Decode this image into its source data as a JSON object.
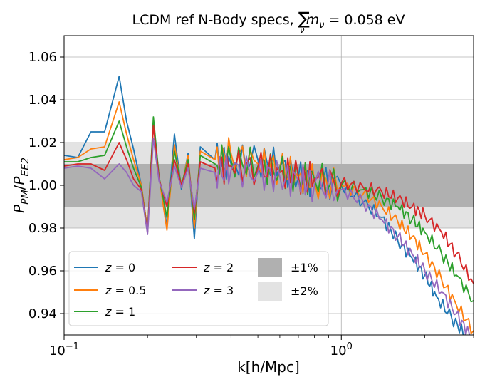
{
  "chart_data": {
    "type": "line",
    "title": "LCDM ref N-Body specs, ∑ν mν = 0.058 eV",
    "title_parts": {
      "prefix": "LCDM ref N-Body specs, ",
      "sum": "∑",
      "sub": "ν",
      "m": "m",
      "msub": "ν",
      "suffix": " = 0.058 eV"
    },
    "xlabel": "k[h/Mpc]",
    "ylabel": "P_PM/P_EE2",
    "ylabel_parts": {
      "p1": "P",
      "s1": "PM",
      "slash": "/",
      "p2": "P",
      "s2": "EE2"
    },
    "xscale": "log",
    "xlim": [
      0.1,
      3.0
    ],
    "ylim": [
      0.93,
      1.07
    ],
    "xticks": [
      {
        "value": 0.1,
        "base": "10",
        "exp": "−1"
      },
      {
        "value": 1.0,
        "base": "10",
        "exp": "0"
      }
    ],
    "yticks": [
      0.94,
      0.96,
      0.98,
      1.0,
      1.02,
      1.04,
      1.06
    ],
    "ytick_labels": [
      "0.94",
      "0.96",
      "0.98",
      "1.00",
      "1.02",
      "1.04",
      "1.06"
    ],
    "grid": true,
    "bands": [
      {
        "name": "±1%",
        "lower": 0.99,
        "upper": 1.01,
        "color": "#b0b0b0"
      },
      {
        "name": "±2%",
        "lower": 0.98,
        "upper": 1.02,
        "color": "#e3e3e3"
      }
    ],
    "legend": {
      "placement": "lower-left",
      "columns": 3
    },
    "series": [
      {
        "name": "z = 0",
        "label_var": "z",
        "label_val": "0",
        "color": "#1f77b4",
        "points": [
          [
            0.1,
            1.014
          ],
          [
            0.112,
            1.013
          ],
          [
            0.125,
            1.025
          ],
          [
            0.14,
            1.025
          ],
          [
            0.158,
            1.051
          ],
          [
            0.168,
            1.03
          ],
          [
            0.178,
            1.017
          ],
          [
            0.19,
            1.0
          ],
          [
            0.2,
            0.979
          ],
          [
            0.21,
            1.03
          ],
          [
            0.22,
            1.004
          ],
          [
            0.235,
            0.981
          ],
          [
            0.25,
            1.024
          ],
          [
            0.265,
            0.998
          ],
          [
            0.28,
            1.015
          ],
          [
            0.295,
            0.975
          ],
          [
            0.31,
            1.018
          ],
          [
            0.35,
            1.012
          ],
          [
            0.4,
            1.01
          ],
          [
            0.5,
            1.012
          ],
          [
            0.6,
            1.009
          ],
          [
            0.7,
            1.004
          ],
          [
            0.8,
            1.002
          ],
          [
            1.0,
            1.0
          ],
          [
            1.2,
            0.992
          ],
          [
            1.4,
            0.985
          ],
          [
            1.6,
            0.974
          ],
          [
            1.8,
            0.966
          ],
          [
            2.0,
            0.958
          ],
          [
            2.2,
            0.948
          ],
          [
            2.5,
            0.938
          ],
          [
            2.8,
            0.93
          ]
        ]
      },
      {
        "name": "z = 0.5",
        "label_var": "z",
        "label_val": "0.5",
        "color": "#ff7f0e",
        "points": [
          [
            0.1,
            1.012
          ],
          [
            0.112,
            1.013
          ],
          [
            0.125,
            1.017
          ],
          [
            0.14,
            1.018
          ],
          [
            0.158,
            1.039
          ],
          [
            0.168,
            1.024
          ],
          [
            0.178,
            1.012
          ],
          [
            0.19,
            1.0
          ],
          [
            0.2,
            0.979
          ],
          [
            0.21,
            1.029
          ],
          [
            0.22,
            1.004
          ],
          [
            0.235,
            0.979
          ],
          [
            0.25,
            1.019
          ],
          [
            0.265,
            0.999
          ],
          [
            0.28,
            1.014
          ],
          [
            0.295,
            0.98
          ],
          [
            0.31,
            1.016
          ],
          [
            0.35,
            1.012
          ],
          [
            0.4,
            1.015
          ],
          [
            0.5,
            1.01
          ],
          [
            0.6,
            1.008
          ],
          [
            0.7,
            1.004
          ],
          [
            0.8,
            1.002
          ],
          [
            1.0,
            1.0
          ],
          [
            1.2,
            0.996
          ],
          [
            1.4,
            0.99
          ],
          [
            1.6,
            0.983
          ],
          [
            1.8,
            0.976
          ],
          [
            2.0,
            0.968
          ],
          [
            2.3,
            0.956
          ],
          [
            2.6,
            0.944
          ],
          [
            3.0,
            0.932
          ]
        ]
      },
      {
        "name": "z = 1",
        "label_var": "z",
        "label_val": "1",
        "color": "#2ca02c",
        "points": [
          [
            0.1,
            1.011
          ],
          [
            0.112,
            1.011
          ],
          [
            0.125,
            1.013
          ],
          [
            0.14,
            1.014
          ],
          [
            0.158,
            1.03
          ],
          [
            0.168,
            1.018
          ],
          [
            0.178,
            1.008
          ],
          [
            0.19,
            0.999
          ],
          [
            0.2,
            0.978
          ],
          [
            0.21,
            1.032
          ],
          [
            0.22,
            1.004
          ],
          [
            0.235,
            0.985
          ],
          [
            0.25,
            1.016
          ],
          [
            0.265,
            1.0
          ],
          [
            0.28,
            1.012
          ],
          [
            0.295,
            0.984
          ],
          [
            0.31,
            1.014
          ],
          [
            0.35,
            1.01
          ],
          [
            0.4,
            1.012
          ],
          [
            0.5,
            1.009
          ],
          [
            0.6,
            1.007
          ],
          [
            0.7,
            1.004
          ],
          [
            0.8,
            1.003
          ],
          [
            1.0,
            1.0
          ],
          [
            1.2,
            0.998
          ],
          [
            1.4,
            0.994
          ],
          [
            1.6,
            0.99
          ],
          [
            1.8,
            0.984
          ],
          [
            2.0,
            0.978
          ],
          [
            2.3,
            0.968
          ],
          [
            2.6,
            0.958
          ],
          [
            3.0,
            0.946
          ]
        ]
      },
      {
        "name": "z = 2",
        "label_var": "z",
        "label_val": "2",
        "color": "#d62728",
        "points": [
          [
            0.1,
            1.009
          ],
          [
            0.112,
            1.01
          ],
          [
            0.125,
            1.01
          ],
          [
            0.14,
            1.007
          ],
          [
            0.158,
            1.02
          ],
          [
            0.168,
            1.012
          ],
          [
            0.178,
            1.003
          ],
          [
            0.19,
            0.998
          ],
          [
            0.2,
            0.978
          ],
          [
            0.21,
            1.028
          ],
          [
            0.22,
            1.003
          ],
          [
            0.235,
            0.99
          ],
          [
            0.25,
            1.012
          ],
          [
            0.265,
            1.0
          ],
          [
            0.28,
            1.01
          ],
          [
            0.295,
            0.987
          ],
          [
            0.31,
            1.011
          ],
          [
            0.35,
            1.008
          ],
          [
            0.4,
            1.009
          ],
          [
            0.5,
            1.008
          ],
          [
            0.6,
            1.006
          ],
          [
            0.7,
            1.004
          ],
          [
            0.8,
            1.003
          ],
          [
            1.0,
            1.001
          ],
          [
            1.2,
            0.999
          ],
          [
            1.4,
            0.997
          ],
          [
            1.6,
            0.994
          ],
          [
            1.8,
            0.99
          ],
          [
            2.0,
            0.986
          ],
          [
            2.3,
            0.978
          ],
          [
            2.6,
            0.968
          ],
          [
            3.0,
            0.954
          ]
        ]
      },
      {
        "name": "z = 3",
        "label_var": "z",
        "label_val": "3",
        "color": "#9467bd",
        "points": [
          [
            0.1,
            1.008
          ],
          [
            0.112,
            1.009
          ],
          [
            0.125,
            1.008
          ],
          [
            0.14,
            1.003
          ],
          [
            0.158,
            1.01
          ],
          [
            0.168,
            1.006
          ],
          [
            0.178,
            1.0
          ],
          [
            0.19,
            0.997
          ],
          [
            0.2,
            0.977
          ],
          [
            0.21,
            1.022
          ],
          [
            0.22,
            1.002
          ],
          [
            0.235,
            0.992
          ],
          [
            0.25,
            1.009
          ],
          [
            0.265,
            0.999
          ],
          [
            0.28,
            1.008
          ],
          [
            0.295,
            0.989
          ],
          [
            0.31,
            1.008
          ],
          [
            0.35,
            1.006
          ],
          [
            0.4,
            1.007
          ],
          [
            0.5,
            1.006
          ],
          [
            0.6,
            1.004
          ],
          [
            0.7,
            1.002
          ],
          [
            0.8,
            1.0
          ],
          [
            1.0,
            0.998
          ],
          [
            1.2,
            0.992
          ],
          [
            1.4,
            0.984
          ],
          [
            1.6,
            0.976
          ],
          [
            1.8,
            0.968
          ],
          [
            2.0,
            0.96
          ],
          [
            2.3,
            0.95
          ],
          [
            2.6,
            0.94
          ],
          [
            2.9,
            0.93
          ]
        ]
      }
    ]
  }
}
